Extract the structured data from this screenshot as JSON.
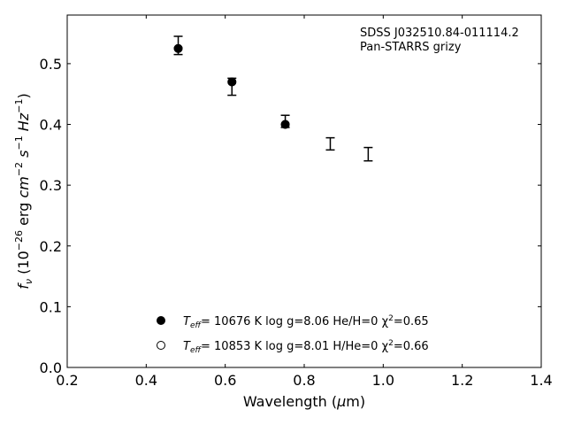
{
  "chart_data": {
    "type": "scatter",
    "title": "",
    "annotation_lines": [
      "SDSS J032510.84-011114.2",
      "Pan-STARRS grizy"
    ],
    "xlabel": "Wavelength (μm)",
    "ylabel": "f_ν (10^-26 erg cm^-2 s^-1 Hz^-1)",
    "xlim": [
      0.2,
      1.4
    ],
    "ylim": [
      0.0,
      0.58
    ],
    "xticks": [
      0.2,
      0.4,
      0.6,
      0.8,
      1.0,
      1.2,
      1.4
    ],
    "xtick_labels": [
      "0.2",
      "0.4",
      "0.6",
      "0.8",
      "1.0",
      "1.2",
      "1.4"
    ],
    "yticks": [
      0.0,
      0.1,
      0.2,
      0.3,
      0.4,
      0.5
    ],
    "ytick_labels": [
      "0.0",
      "0.1",
      "0.2",
      "0.3",
      "0.4",
      "0.5"
    ],
    "grid": false,
    "legend_position": "lower-center",
    "observed": {
      "x": [
        0.481,
        0.617,
        0.752,
        0.866,
        0.962
      ],
      "y": [
        0.53,
        0.462,
        0.405,
        0.368,
        0.351
      ],
      "yerr": [
        0.015,
        0.014,
        0.01,
        0.01,
        0.011
      ]
    },
    "series": [
      {
        "marker": "filled-circle",
        "label_parts": {
          "pre": "T",
          "sub": "eff",
          "mid": "= 10676 K  log g=8.06  He/H=0  χ",
          "sup": "2",
          "post": "=0.65"
        },
        "x": [
          0.481,
          0.617,
          0.752
        ],
        "y": [
          0.525,
          0.47,
          0.4
        ]
      },
      {
        "marker": "open-circle",
        "label_parts": {
          "pre": "T",
          "sub": "eff",
          "mid": "= 10853 K  log g=8.01  H/He=0  χ",
          "sup": "2",
          "post": "=0.66"
        },
        "x": [
          0.481,
          0.617,
          0.752
        ],
        "y": [
          0.525,
          0.47,
          0.4
        ]
      }
    ]
  }
}
